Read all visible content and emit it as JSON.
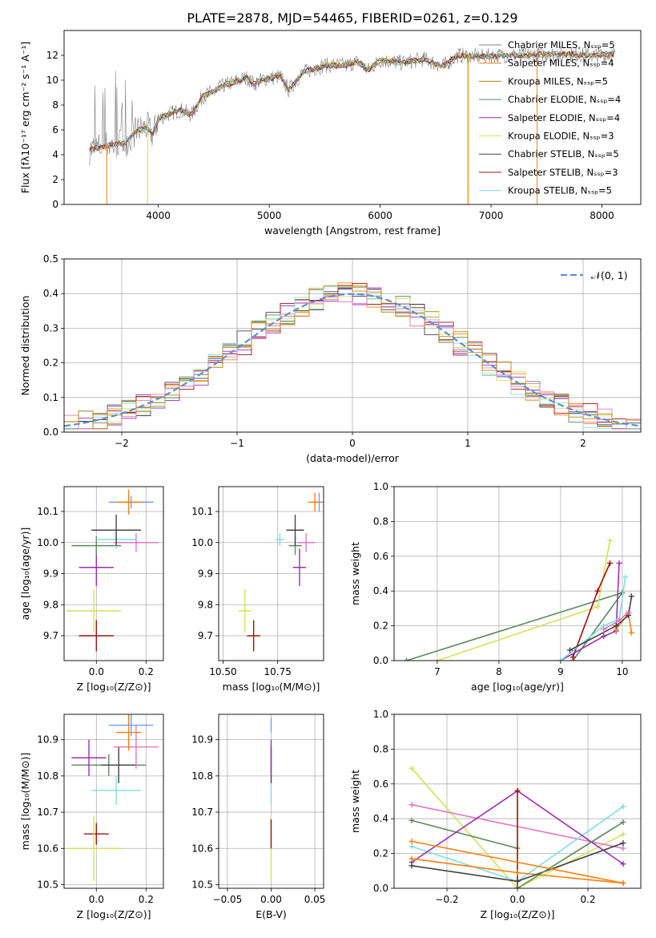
{
  "title": "PLATE=2878, MJD=54465, FIBERID=0261, z=0.129",
  "colors": {
    "c_chab_miles": "#808080",
    "c_salp_miles": "#ff7f0e",
    "c_krou_miles": "#b8860b",
    "c_chab_elodie": "#5b8a5b",
    "c_salp_elodie": "#9b2fb5",
    "c_krou_elodie": "#d4e157",
    "c_chab_stelib": "#444444",
    "c_salp_stelib": "#a01010",
    "c_krou_stelib": "#80dee0",
    "c_normal": "#5b8fd8",
    "c_extra_blue": "#6c9ef0",
    "c_extra_pink": "#e377c2"
  },
  "chart_data": [
    {
      "id": "spectrum",
      "type": "line",
      "xlabel": "wavelength [Angstrom, rest frame]",
      "ylabel": "Flux [fλ10⁻¹⁷ erg cm⁻² s⁻¹ A⁻¹]",
      "xlim": [
        3150,
        8350
      ],
      "ylim": [
        0,
        14
      ],
      "xticks": [
        "4000",
        "5000",
        "6000",
        "7000",
        "8000"
      ],
      "yticks": [
        "0",
        "2",
        "4",
        "6",
        "8",
        "10",
        "12"
      ],
      "legend": [
        "Chabrier MILES, Nₛₛₚ=5",
        "Salpeter MILES, Nₛₛₚ=4",
        "Kroupa MILES, Nₛₛₚ=5",
        "Chabrier ELODIE, Nₛₛₚ=4",
        "Salpeter ELODIE, Nₛₛₚ=4",
        "Kroupa ELODIE, Nₛₛₚ=3",
        "Chabrier STELIB, Nₛₛₚ=5",
        "Salpeter STELIB, Nₛₛₚ=3",
        "Kroupa STELIB, Nₛₛₚ=5"
      ],
      "legend_loc": "upper right",
      "continuum": [
        [
          3400,
          4.4
        ],
        [
          3500,
          4.7
        ],
        [
          3600,
          4.8
        ],
        [
          3700,
          5.0
        ],
        [
          3800,
          5.9
        ],
        [
          3900,
          6.2
        ],
        [
          3950,
          5.6
        ],
        [
          4000,
          6.9
        ],
        [
          4100,
          7.3
        ],
        [
          4200,
          7.6
        ],
        [
          4300,
          7.2
        ],
        [
          4400,
          8.7
        ],
        [
          4500,
          9.1
        ],
        [
          4600,
          9.6
        ],
        [
          4700,
          9.9
        ],
        [
          4800,
          10.2
        ],
        [
          4861,
          9.7
        ],
        [
          4950,
          10.1
        ],
        [
          5100,
          10.3
        ],
        [
          5175,
          9.2
        ],
        [
          5300,
          10.6
        ],
        [
          5500,
          11.2
        ],
        [
          5700,
          11.2
        ],
        [
          5800,
          11.5
        ],
        [
          5890,
          10.8
        ],
        [
          6000,
          11.6
        ],
        [
          6200,
          11.4
        ],
        [
          6400,
          11.7
        ],
        [
          6563,
          11.1
        ],
        [
          6700,
          12.0
        ],
        [
          6900,
          11.9
        ],
        [
          7100,
          12.0
        ],
        [
          7300,
          12.0
        ],
        [
          7500,
          12.1
        ],
        [
          7700,
          12.1
        ],
        [
          7900,
          12.0
        ],
        [
          8100,
          12.1
        ]
      ],
      "grid": false
    },
    {
      "id": "residuals",
      "type": "histogram",
      "xlabel": "(data-model)/error",
      "ylabel": "Normed distribution",
      "xlim": [
        -2.5,
        2.5
      ],
      "ylim": [
        0,
        0.5
      ],
      "xticks": [
        "−2",
        "−1",
        "0",
        "1",
        "2"
      ],
      "yticks": [
        "0.0",
        "0.1",
        "0.2",
        "0.3",
        "0.4",
        "0.5"
      ],
      "legend": [
        "𝒩(0, 1)"
      ],
      "legend_loc": "upper right",
      "bins": 40,
      "grid": true
    },
    {
      "id": "age_vs_Z",
      "type": "scatter",
      "xlabel": "Z [log₁₀(Z/Z⊙)]",
      "ylabel": "age  [log₁₀(age/yr)]",
      "xlim": [
        -0.13,
        0.27
      ],
      "ylim": [
        9.62,
        10.18
      ],
      "xticks": [
        "0.0",
        "0.2"
      ],
      "yticks": [
        "9.7",
        "9.8",
        "9.9",
        "10.0",
        "10.1"
      ],
      "points": [
        {
          "c": "c_salp_stelib",
          "x": 0.0,
          "y": 9.7,
          "xe": 0.07,
          "ye": 0.05
        },
        {
          "c": "c_krou_elodie",
          "x": -0.01,
          "y": 9.78,
          "xe": 0.11,
          "ye": 0.07
        },
        {
          "c": "c_salp_elodie",
          "x": 0.0,
          "y": 9.92,
          "xe": 0.07,
          "ye": 0.06
        },
        {
          "c": "c_chab_elodie",
          "x": 0.0,
          "y": 9.99,
          "xe": 0.1,
          "ye": 0.03
        },
        {
          "c": "c_krou_stelib",
          "x": 0.08,
          "y": 10.01,
          "xe": 0.08,
          "ye": 0.03
        },
        {
          "c": "c_extra_pink",
          "x": 0.16,
          "y": 10.0,
          "xe": 0.09,
          "ye": 0.03
        },
        {
          "c": "c_chab_stelib",
          "x": 0.08,
          "y": 10.04,
          "xe": 0.1,
          "ye": 0.05
        },
        {
          "c": "c_extra_blue",
          "x": 0.14,
          "y": 10.13,
          "xe": 0.09,
          "ye": 0.02
        },
        {
          "c": "c_salp_miles",
          "x": 0.13,
          "y": 10.13,
          "xe": 0.05,
          "ye": 0.04
        }
      ],
      "grid": true
    },
    {
      "id": "age_vs_mass",
      "type": "scatter",
      "xlabel": "mass [log₁₀(M/M⊙)]",
      "ylabel": "",
      "xlim": [
        10.48,
        10.96
      ],
      "ylim": [
        9.62,
        10.18
      ],
      "xticks": [
        "10.50",
        "10.75"
      ],
      "yticks": [
        "9.7",
        "9.8",
        "9.9",
        "10.0",
        "10.1"
      ],
      "points": [
        {
          "c": "c_salp_stelib",
          "x": 10.64,
          "y": 9.7,
          "xe": 0.03,
          "ye": 0.05
        },
        {
          "c": "c_krou_elodie",
          "x": 10.6,
          "y": 9.78,
          "xe": 0.03,
          "ye": 0.07
        },
        {
          "c": "c_salp_elodie",
          "x": 10.85,
          "y": 9.92,
          "xe": 0.03,
          "ye": 0.06
        },
        {
          "c": "c_chab_elodie",
          "x": 10.83,
          "y": 9.99,
          "xe": 0.03,
          "ye": 0.03
        },
        {
          "c": "c_krou_stelib",
          "x": 10.76,
          "y": 10.01,
          "xe": 0.02,
          "ye": 0.02
        },
        {
          "c": "c_extra_pink",
          "x": 10.88,
          "y": 10.0,
          "xe": 0.04,
          "ye": 0.03
        },
        {
          "c": "c_chab_stelib",
          "x": 10.83,
          "y": 10.04,
          "xe": 0.04,
          "ye": 0.05
        },
        {
          "c": "c_extra_blue",
          "x": 10.94,
          "y": 10.13,
          "xe": 0.02,
          "ye": 0.03
        },
        {
          "c": "c_salp_miles",
          "x": 10.92,
          "y": 10.13,
          "xe": 0.03,
          "ye": 0.03
        }
      ],
      "grid": true
    },
    {
      "id": "massweight_vs_age",
      "type": "line",
      "xlabel": "age  [log₁₀(age/yr)]",
      "ylabel": "mass weight",
      "xlim": [
        6.3,
        10.3
      ],
      "ylim": [
        0,
        1.0
      ],
      "xticks": [
        "7",
        "8",
        "9",
        "10"
      ],
      "yticks": [
        "0.0",
        "0.2",
        "0.4",
        "0.6",
        "0.8",
        "1.0"
      ],
      "series": [
        {
          "c": "c_chab_elodie",
          "x": [
            6.5,
            10.0,
            9.2
          ],
          "y": [
            0.0,
            0.39,
            0.0
          ]
        },
        {
          "c": "c_krou_elodie",
          "x": [
            7.0,
            9.6,
            9.8
          ],
          "y": [
            0.0,
            0.31,
            0.69
          ]
        },
        {
          "c": "c_salp_stelib",
          "x": [
            9.2,
            9.6,
            9.8
          ],
          "y": [
            0.02,
            0.4,
            0.56
          ]
        },
        {
          "c": "c_salp_elodie",
          "x": [
            9.0,
            9.7,
            9.9,
            9.95
          ],
          "y": [
            0.0,
            0.14,
            0.17,
            0.56
          ]
        },
        {
          "c": "c_krou_stelib",
          "x": [
            9.0,
            9.7,
            9.95,
            10.05
          ],
          "y": [
            0.0,
            0.2,
            0.24,
            0.48
          ]
        },
        {
          "c": "c_salp_miles",
          "x": [
            9.9,
            10.1,
            10.15
          ],
          "y": [
            0.18,
            0.27,
            0.16
          ]
        },
        {
          "c": "c_chab_stelib",
          "x": [
            9.15,
            9.9,
            10.1,
            10.15
          ],
          "y": [
            0.06,
            0.2,
            0.26,
            0.37
          ]
        },
        {
          "c": "c_extra_pink",
          "x": [
            9.7,
            9.95,
            10.1
          ],
          "y": [
            0.18,
            0.23,
            0.28
          ]
        }
      ],
      "grid": true
    },
    {
      "id": "mass_vs_Z",
      "type": "scatter",
      "xlabel": "Z [log₁₀(Z/Z⊙)]",
      "ylabel": "mass [log₁₀(M/M⊙)]",
      "xlim": [
        -0.13,
        0.27
      ],
      "ylim": [
        10.49,
        10.97
      ],
      "xticks": [
        "0.0",
        "0.2"
      ],
      "yticks": [
        "10.5",
        "10.6",
        "10.7",
        "10.8",
        "10.9"
      ],
      "points": [
        {
          "c": "c_salp_stelib",
          "x": 0.0,
          "y": 10.64,
          "xe": 0.05,
          "ye": 0.03
        },
        {
          "c": "c_krou_elodie",
          "x": -0.01,
          "y": 10.6,
          "xe": 0.11,
          "ye": 0.09
        },
        {
          "c": "c_krou_stelib",
          "x": 0.08,
          "y": 10.76,
          "xe": 0.1,
          "ye": 0.04
        },
        {
          "c": "c_chab_elodie",
          "x": 0.05,
          "y": 10.83,
          "xe": 0.15,
          "ye": 0.03
        },
        {
          "c": "c_chab_stelib",
          "x": 0.09,
          "y": 10.83,
          "xe": 0.07,
          "ye": 0.05
        },
        {
          "c": "c_salp_elodie",
          "x": -0.03,
          "y": 10.85,
          "xe": 0.07,
          "ye": 0.05
        },
        {
          "c": "c_extra_pink",
          "x": 0.16,
          "y": 10.88,
          "xe": 0.09,
          "ye": 0.06
        },
        {
          "c": "c_salp_miles",
          "x": 0.13,
          "y": 10.92,
          "xe": 0.05,
          "ye": 0.05
        },
        {
          "c": "c_extra_blue",
          "x": 0.14,
          "y": 10.94,
          "xe": 0.09,
          "ye": 0.03
        }
      ],
      "grid": true
    },
    {
      "id": "mass_vs_ebv",
      "type": "scatter",
      "xlabel": "E(B-V)",
      "ylabel": "",
      "xlim": [
        -0.06,
        0.06
      ],
      "ylim": [
        10.49,
        10.97
      ],
      "xticks": [
        "−0.05",
        "0.00",
        "0.05"
      ],
      "yticks": [
        "10.5",
        "10.6",
        "10.7",
        "10.8",
        "10.9"
      ],
      "points": [
        {
          "c": "c_krou_elodie",
          "x": 0.0,
          "y": 10.6,
          "xe": 0.0,
          "ye": 0.09
        },
        {
          "c": "c_salp_stelib",
          "x": 0.0,
          "y": 10.64,
          "xe": 0.0,
          "ye": 0.04
        },
        {
          "c": "c_krou_stelib",
          "x": 0.0,
          "y": 10.76,
          "xe": 0.0,
          "ye": 0.04
        },
        {
          "c": "c_chab_stelib",
          "x": 0.0,
          "y": 10.83,
          "xe": 0.0,
          "ye": 0.05
        },
        {
          "c": "c_salp_elodie",
          "x": 0.0,
          "y": 10.85,
          "xe": 0.0,
          "ye": 0.05
        },
        {
          "c": "c_extra_blue",
          "x": 0.0,
          "y": 10.94,
          "xe": 0.0,
          "ye": 0.02
        }
      ],
      "grid": true
    },
    {
      "id": "massweight_vs_Z",
      "type": "line",
      "xlabel": "Z [log₁₀(Z/Z⊙)]",
      "ylabel": "mass weight",
      "xlim": [
        -0.35,
        0.35
      ],
      "ylim": [
        0,
        1.0
      ],
      "xticks": [
        "−0.2",
        "0.0",
        "0.2"
      ],
      "yticks": [
        "0.0",
        "0.2",
        "0.4",
        "0.6",
        "0.8",
        "1.0"
      ],
      "series": [
        {
          "c": "c_krou_elodie",
          "x": [
            -0.3,
            0.0,
            0.3
          ],
          "y": [
            0.69,
            0.0,
            0.31
          ]
        },
        {
          "c": "c_extra_pink",
          "x": [
            -0.3,
            0.3
          ],
          "y": [
            0.48,
            0.23
          ]
        },
        {
          "c": "c_chab_elodie",
          "x": [
            -0.3,
            0.0
          ],
          "y": [
            0.39,
            0.23
          ]
        },
        {
          "c": "c_krou_stelib",
          "x": [
            -0.3,
            0.0,
            0.3
          ],
          "y": [
            0.24,
            0.04,
            0.47
          ]
        },
        {
          "c": "c_salp_elodie",
          "x": [
            -0.3,
            0.0,
            0.3
          ],
          "y": [
            0.15,
            0.56,
            0.14
          ]
        },
        {
          "c": "c_salp_stelib",
          "x": [
            0.0,
            0.0
          ],
          "y": [
            0.0,
            0.56
          ]
        },
        {
          "c": "c_salp_miles",
          "x": [
            -0.3,
            0.0,
            0.3
          ],
          "y": [
            0.17,
            0.09,
            0.03
          ]
        },
        {
          "c": "c_chab_stelib",
          "x": [
            -0.3,
            0.0,
            0.3
          ],
          "y": [
            0.13,
            0.04,
            0.26
          ]
        },
        {
          "c": "c_chab_elodie",
          "x": [
            0.0,
            0.3
          ],
          "y": [
            0.0,
            0.38
          ]
        },
        {
          "c": "c_salp_miles",
          "x": [
            -0.3,
            0.3
          ],
          "y": [
            0.27,
            0.03
          ]
        }
      ],
      "grid": true
    }
  ]
}
